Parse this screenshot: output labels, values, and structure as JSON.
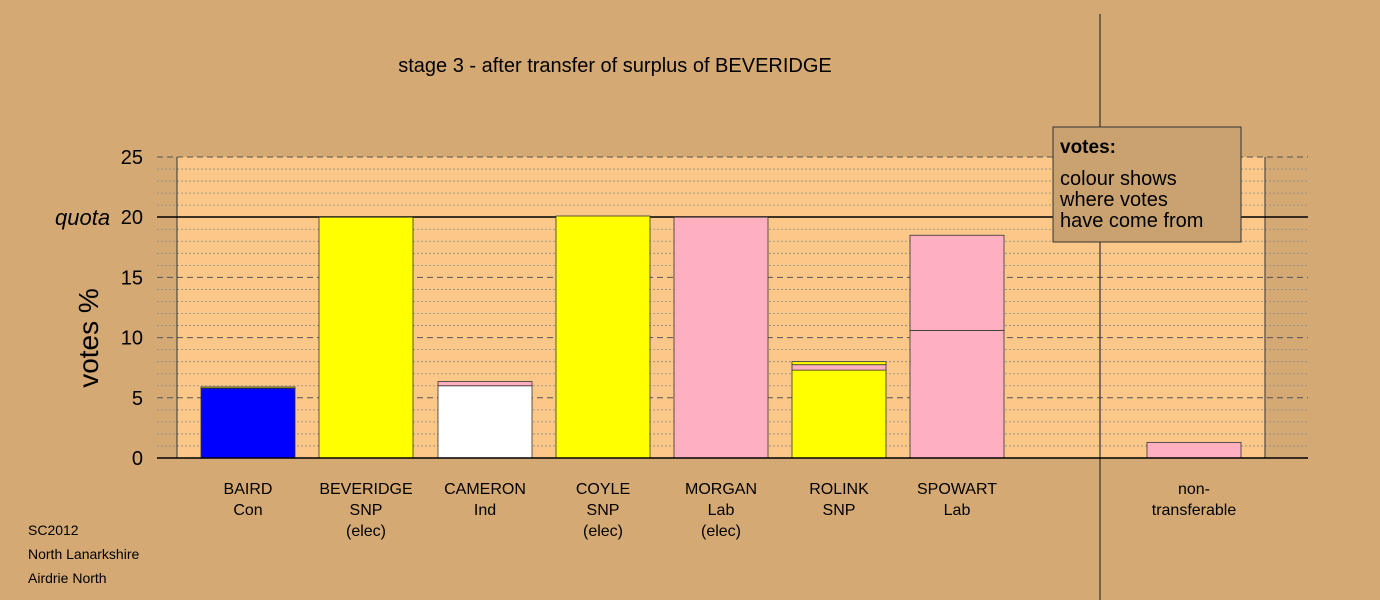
{
  "chart_data": {
    "type": "bar",
    "stacked": true,
    "title": "stage 3 - after transfer of surplus of BEVERIDGE",
    "ylabel": "votes %",
    "ylim": [
      0,
      25
    ],
    "yticks": [
      0,
      5,
      10,
      15,
      20,
      25
    ],
    "quota": {
      "label": "quota",
      "value": 20
    },
    "grid": true,
    "categories": [
      {
        "lines": [
          "BAIRD",
          "Con"
        ]
      },
      {
        "lines": [
          "BEVERIDGE",
          "SNP",
          "(elec)"
        ]
      },
      {
        "lines": [
          "CAMERON",
          "Ind"
        ]
      },
      {
        "lines": [
          "COYLE",
          "SNP",
          "(elec)"
        ]
      },
      {
        "lines": [
          "MORGAN",
          "Lab",
          "(elec)"
        ]
      },
      {
        "lines": [
          "ROLINK",
          "SNP"
        ]
      },
      {
        "lines": [
          "SPOWART",
          "Lab"
        ]
      },
      {
        "lines": [
          "non-",
          "transferable"
        ]
      }
    ],
    "bars": [
      {
        "segments": [
          {
            "value": 5.8,
            "color": "#0000ff"
          },
          {
            "value": 0.1,
            "color": "#ffff00"
          }
        ]
      },
      {
        "segments": [
          {
            "value": 20.0,
            "color": "#ffff00"
          }
        ]
      },
      {
        "segments": [
          {
            "value": 6.0,
            "color": "#ffffff"
          },
          {
            "value": 0.35,
            "color": "#ffb0c0"
          }
        ]
      },
      {
        "segments": [
          {
            "value": 20.1,
            "color": "#ffff00"
          }
        ]
      },
      {
        "segments": [
          {
            "value": 20.0,
            "color": "#ffb0c0"
          }
        ]
      },
      {
        "segments": [
          {
            "value": 7.3,
            "color": "#ffff00"
          },
          {
            "value": 0.45,
            "color": "#ffb0c0"
          },
          {
            "value": 0.25,
            "color": "#ffff00"
          }
        ]
      },
      {
        "segments": [
          {
            "value": 10.6,
            "color": "#ffb0c0"
          },
          {
            "value": 7.9,
            "color": "#ffb0c0"
          }
        ]
      },
      {
        "segments": [
          {
            "value": 1.3,
            "color": "#ffb0c0"
          }
        ]
      }
    ],
    "legend": {
      "heading": "votes:",
      "lines": [
        "colour shows",
        "where votes",
        "have come from"
      ],
      "placement": "top-right"
    }
  },
  "footer": {
    "lines": [
      "SC2012",
      "North Lanarkshire",
      "Airdrie North"
    ]
  },
  "colors": {
    "background": "#d4a974",
    "plot_area": "#fbc88a",
    "legend_box": "#c9a26f"
  }
}
